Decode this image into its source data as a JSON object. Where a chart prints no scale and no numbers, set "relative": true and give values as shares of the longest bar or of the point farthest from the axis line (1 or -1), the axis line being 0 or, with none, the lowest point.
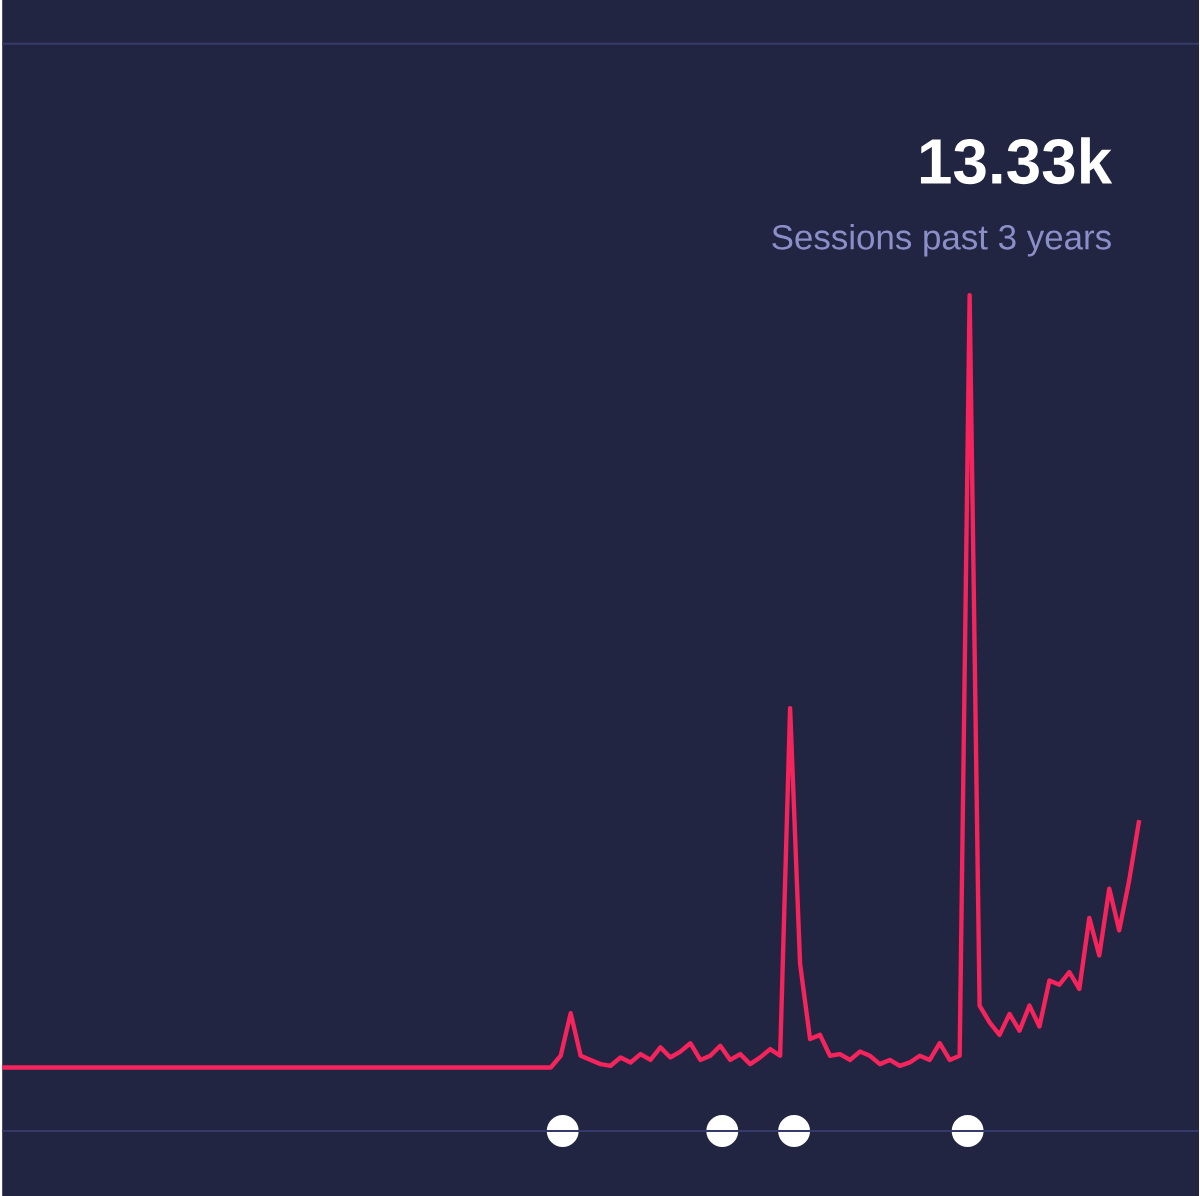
{
  "chart_data": {
    "type": "line",
    "title": "13.33k",
    "subtitle": "Sessions past 3 years",
    "relative": true,
    "categories": [
      null,
      null,
      null,
      null,
      null,
      null,
      null,
      null,
      null,
      null,
      null,
      null,
      null,
      null,
      null,
      null,
      null,
      null,
      null,
      null,
      null,
      null,
      null,
      null,
      null,
      null,
      null,
      null,
      null,
      null,
      null,
      null,
      null,
      null,
      null,
      null,
      null,
      null,
      null,
      null,
      null,
      null,
      null,
      null,
      null,
      null,
      null,
      null,
      null,
      null,
      null,
      null,
      null,
      null,
      null,
      null,
      null,
      null,
      null,
      null,
      null,
      null,
      null,
      null,
      null,
      null,
      null,
      null,
      null,
      null,
      null,
      null,
      null,
      null,
      null,
      null,
      null,
      null,
      null,
      null,
      null,
      null,
      null,
      null,
      null,
      null,
      null,
      null,
      null,
      null,
      null,
      null,
      null,
      null,
      null,
      null,
      null,
      null,
      null,
      null,
      null,
      null,
      null,
      null,
      null,
      null,
      null,
      null,
      null,
      null,
      null,
      null,
      null,
      null,
      null
    ],
    "series": [
      {
        "color": "#f5245c",
        "marker": "none",
        "line_style": "solid",
        "values": [
          0.076,
          0.076,
          0.076,
          0.076,
          0.076,
          0.076,
          0.076,
          0.076,
          0.076,
          0.076,
          0.076,
          0.076,
          0.076,
          0.076,
          0.076,
          0.076,
          0.076,
          0.076,
          0.076,
          0.076,
          0.076,
          0.076,
          0.076,
          0.076,
          0.076,
          0.076,
          0.076,
          0.076,
          0.076,
          0.076,
          0.076,
          0.076,
          0.076,
          0.076,
          0.076,
          0.076,
          0.076,
          0.076,
          0.076,
          0.076,
          0.076,
          0.076,
          0.076,
          0.076,
          0.076,
          0.076,
          0.076,
          0.076,
          0.076,
          0.076,
          0.076,
          0.076,
          0.076,
          0.076,
          0.076,
          0.076,
          0.09,
          0.141,
          0.09,
          0.085,
          0.08,
          0.078,
          0.088,
          0.082,
          0.092,
          0.085,
          0.1,
          0.088,
          0.095,
          0.105,
          0.085,
          0.09,
          0.102,
          0.085,
          0.092,
          0.08,
          0.088,
          0.098,
          0.09,
          0.506,
          0.2,
          0.11,
          0.115,
          0.09,
          0.092,
          0.085,
          0.095,
          0.09,
          0.08,
          0.085,
          0.078,
          0.082,
          0.09,
          0.085,
          0.105,
          0.085,
          0.09,
          1.0,
          0.15,
          0.13,
          0.115,
          0.14,
          0.12,
          0.15,
          0.125,
          0.18,
          0.175,
          0.19,
          0.17,
          0.255,
          0.21,
          0.29,
          0.24,
          0.3,
          0.372
        ]
      }
    ]
  }
}
